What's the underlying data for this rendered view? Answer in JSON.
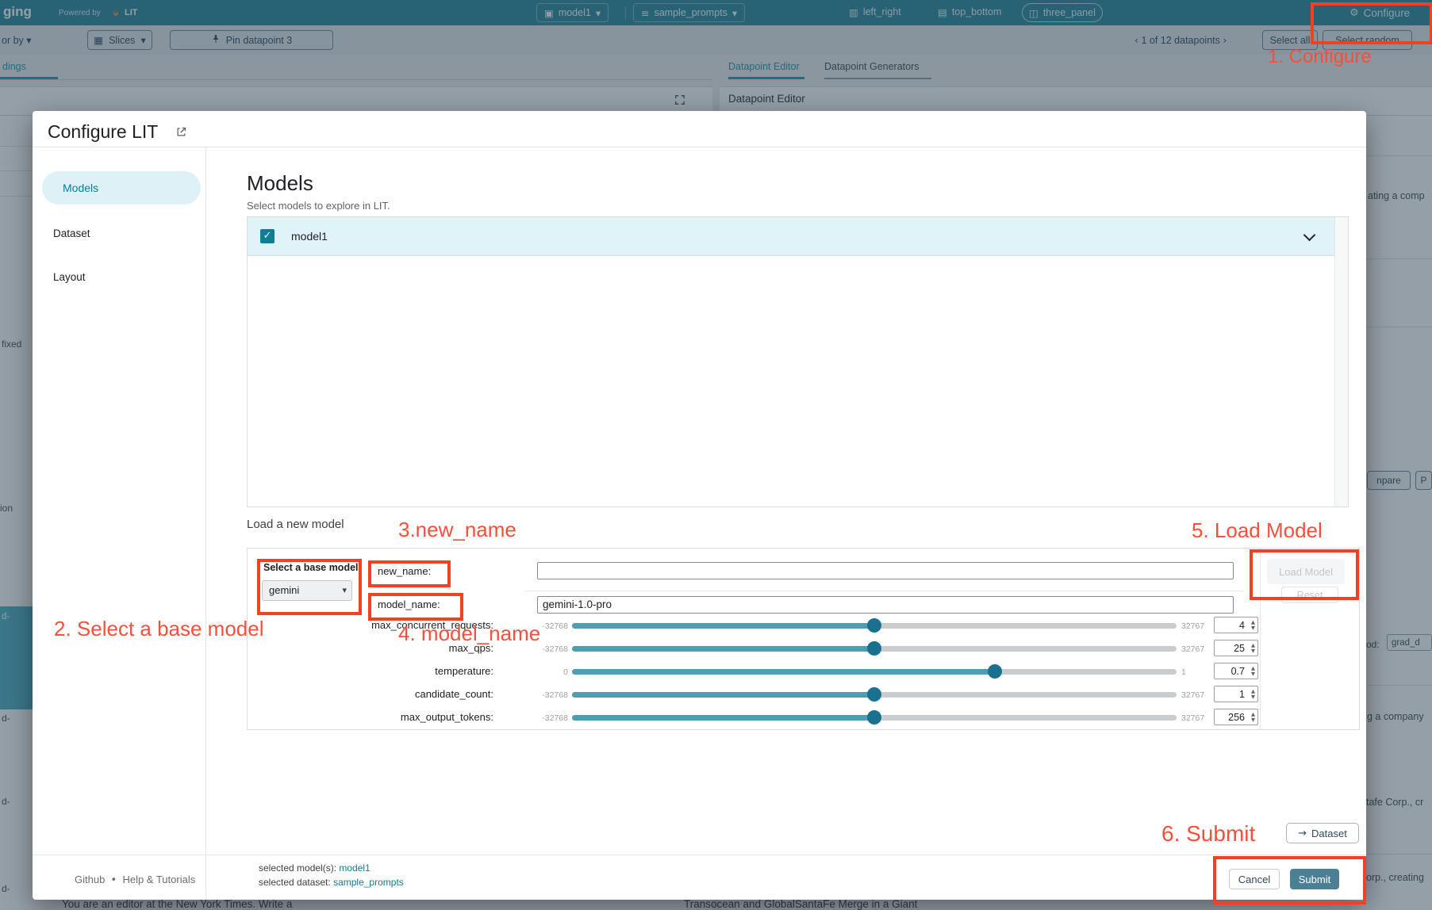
{
  "colors": {
    "accent_teal": "#0e7d94",
    "annotation_red": "#f5472e",
    "header_teal": "#1a7e97",
    "submit_teal": "#4b8094",
    "slider_fill": "#4f9db2",
    "selected_row": "#e0f3f8"
  },
  "icons": {
    "caret_down": "▾",
    "chevron_left": "‹",
    "chevron_right": "›",
    "grid": "▦",
    "columns": "▥",
    "rows": "▤",
    "panel": "◫",
    "gear": "⚙",
    "list": "≡",
    "box": "▣",
    "check": "✓",
    "arrow_up": "▲",
    "arrow_down": "▼",
    "bullet": "•",
    "arrow_right": "→"
  },
  "annotations": {
    "step1": "1. Configure",
    "step2": "2. Select a base model",
    "step3": "3.new_name",
    "step4": "4. model_name",
    "step5": "5. Load Model",
    "step6": "6. Submit"
  },
  "header": {
    "app_title_fragment": "ging",
    "powered_by": "Powered by",
    "lit_label": "LIT",
    "model_chip": "model1",
    "dataset_chip": "sample_prompts",
    "layout_tabs": [
      "left_right",
      "top_bottom",
      "three_panel"
    ],
    "configure_label": "Configure"
  },
  "toolbar": {
    "color_by_fragment": "or by",
    "slices_label": "Slices",
    "pin_label": "Pin datapoint 3",
    "pagination": "1 of 12 datapoints",
    "select_all_label": "Select all",
    "select_random_label": "Select random"
  },
  "background": {
    "left_tab_fragment": "dings",
    "right_tabs": [
      "Datapoint Editor",
      "Datapoint Generators"
    ],
    "right_panel_title": "Datapoint Editor",
    "left_fragments": [
      "fixed",
      "ion",
      "d-",
      "d-",
      "d-",
      "d-"
    ],
    "right_fragments": [
      "ating a comp",
      "npare",
      "P",
      "od:",
      "grad_d",
      "g a company",
      "tafe Corp., cr",
      "orp., creating"
    ],
    "bottom_fragments": [
      "You are an editor at the New York Times. Write a",
      "Transocean and GlobalSantaFe Merge in a Giant"
    ]
  },
  "modal": {
    "title": "Configure LIT",
    "sidebar": {
      "items": [
        {
          "label": "Models"
        },
        {
          "label": "Dataset"
        },
        {
          "label": "Layout"
        }
      ]
    },
    "models_section": {
      "heading": "Models",
      "subtitle": "Select models to explore in LIT.",
      "model_row": {
        "label": "model1",
        "checked": true
      }
    },
    "load_model_section": {
      "heading": "Load a new model",
      "base_model_label": "Select a base model",
      "base_model_value": "gemini",
      "fields": [
        {
          "label": "new_name:",
          "value": ""
        },
        {
          "label": "model_name:",
          "value": "gemini-1.0-pro"
        }
      ],
      "sliders": [
        {
          "label": "max_concurrent_requests:",
          "min": "-32768",
          "max": "32767",
          "value": "4",
          "fraction": 0.5
        },
        {
          "label": "max_qps:",
          "min": "-32768",
          "max": "32767",
          "value": "25",
          "fraction": 0.5
        },
        {
          "label": "temperature:",
          "min": "0",
          "max": "1",
          "value": "0.7",
          "fraction": 0.7
        },
        {
          "label": "candidate_count:",
          "min": "-32768",
          "max": "32767",
          "value": "1",
          "fraction": 0.5
        },
        {
          "label": "max_output_tokens:",
          "min": "-32768",
          "max": "32767",
          "value": "256",
          "fraction": 0.5
        }
      ],
      "load_button": "Load Model",
      "reset_button": "Reset"
    },
    "dataset_jump_button": "Dataset",
    "footer": {
      "github": "Github",
      "help": "Help & Tutorials",
      "selected_model_label": "selected model(s):",
      "selected_model_value": "model1",
      "selected_dataset_label": "selected dataset:",
      "selected_dataset_value": "sample_prompts",
      "cancel": "Cancel",
      "submit": "Submit"
    }
  }
}
